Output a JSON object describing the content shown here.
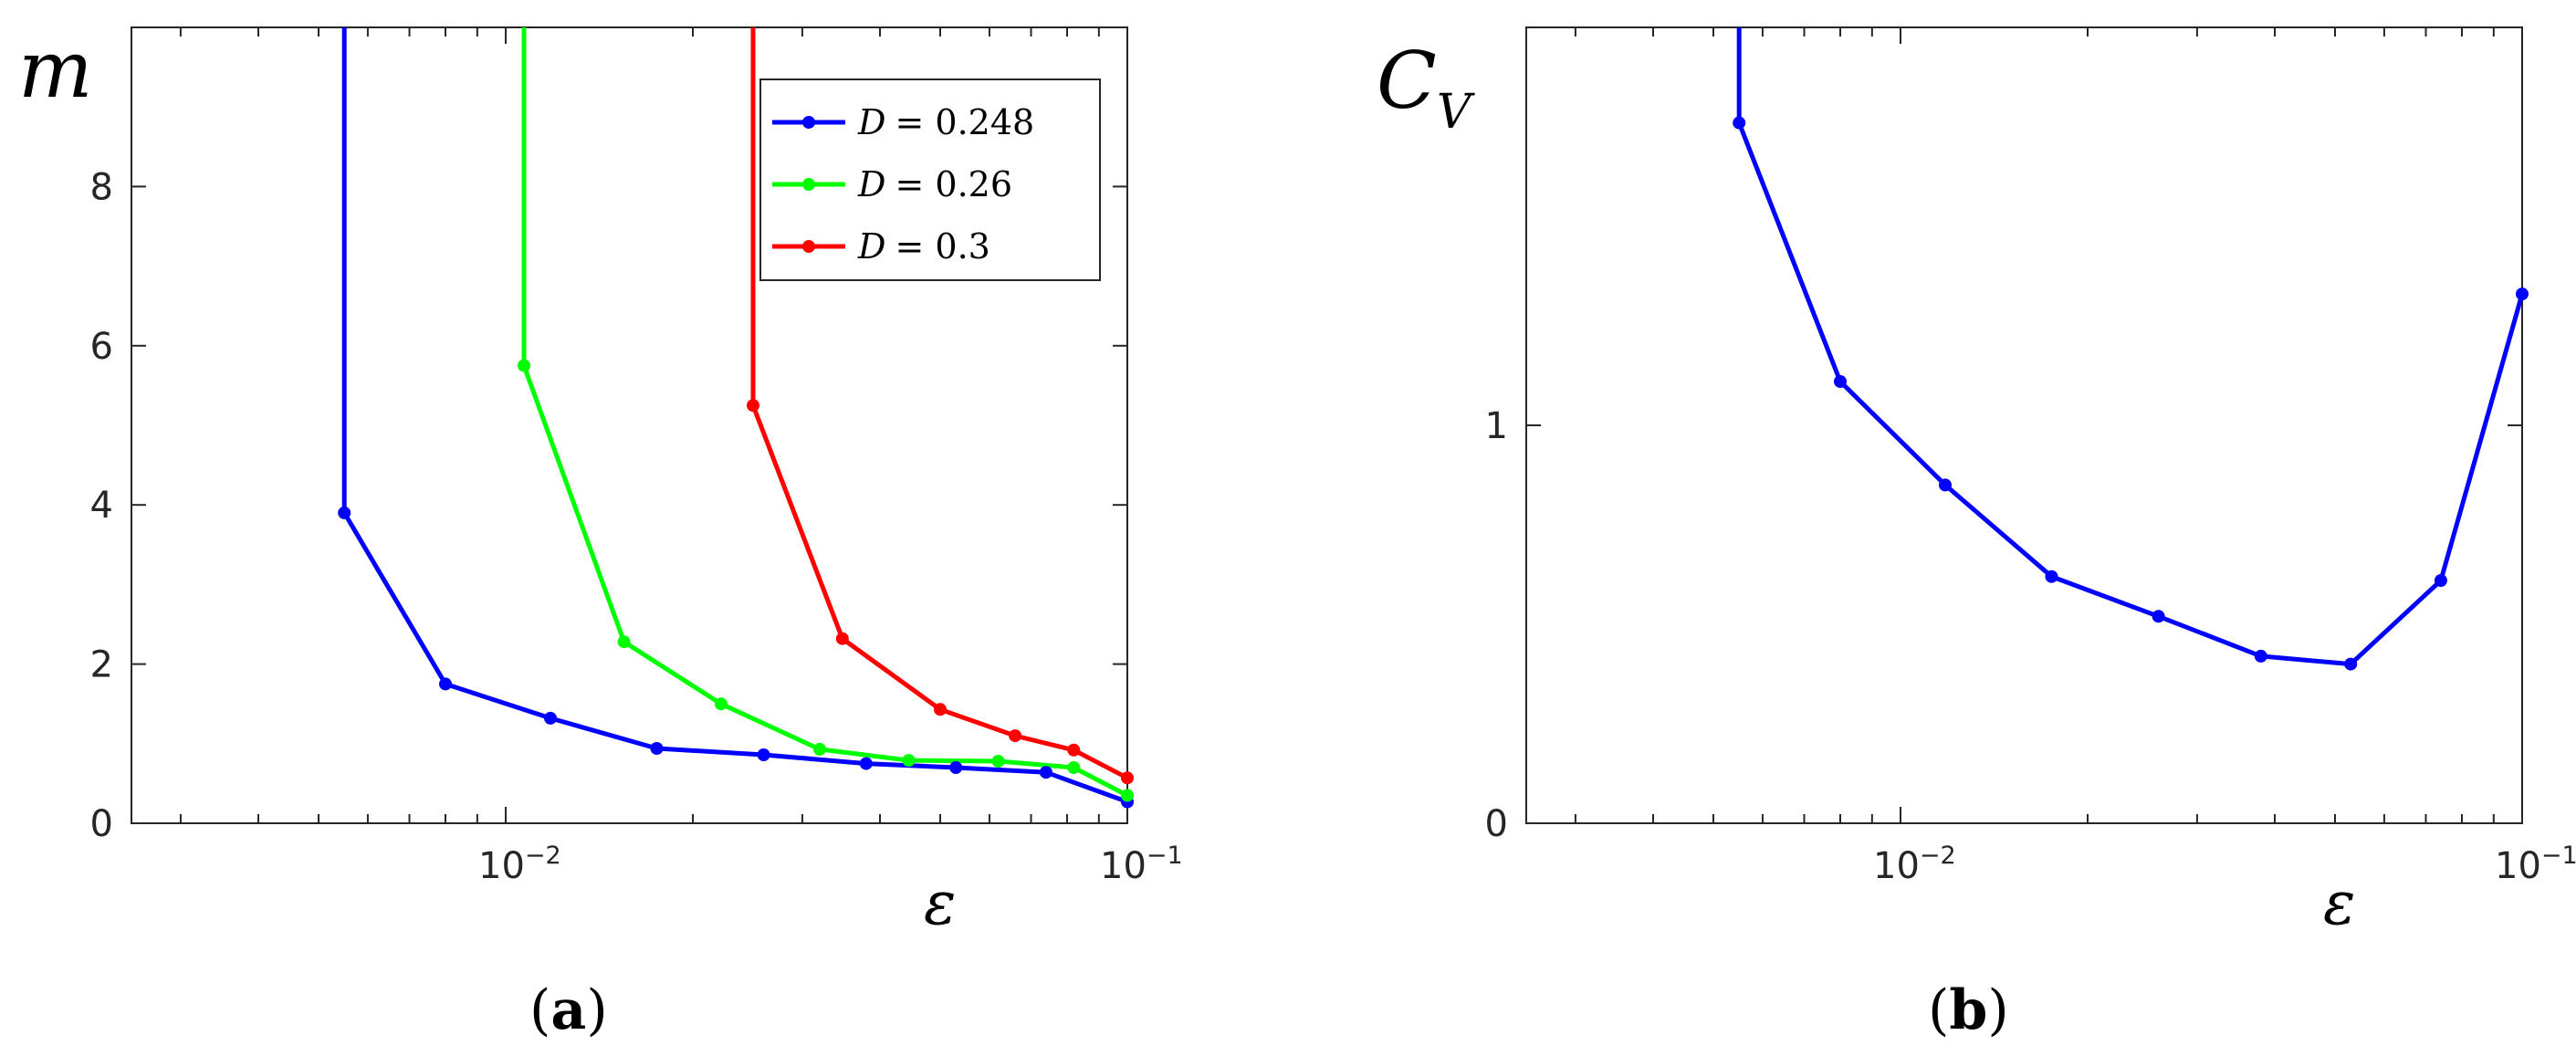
{
  "chart_data": [
    {
      "panel_label": "(a)",
      "panel_label_parts": {
        "open": "(",
        "letter": "a",
        "close": ")"
      },
      "type": "line",
      "ylabel": "m",
      "xlabel": "ε",
      "xscale": "log",
      "xlim": [
        0.0025,
        0.1
      ],
      "ylim": [
        0,
        10
      ],
      "grid": false,
      "legend_position": "top-right",
      "y_ticks": [
        {
          "value": 0,
          "label": "0"
        },
        {
          "value": 2,
          "label": "2"
        },
        {
          "value": 4,
          "label": "4"
        },
        {
          "value": 6,
          "label": "6"
        },
        {
          "value": 8,
          "label": "8"
        }
      ],
      "x_tick_labels": [
        {
          "value": 0.01,
          "base": "10",
          "exp": "−2"
        },
        {
          "value": 0.1,
          "base": "10",
          "exp": "−1"
        }
      ],
      "series": [
        {
          "name": "D = 0.248",
          "legend_var": "D",
          "legend_value": "= 0.248",
          "color": "#0000ff",
          "x": [
            0.0055,
            0.0055,
            0.008,
            0.0118,
            0.0175,
            0.026,
            0.038,
            0.053,
            0.074,
            0.1
          ],
          "y": [
            10,
            3.9,
            1.75,
            1.32,
            0.94,
            0.86,
            0.75,
            0.7,
            0.64,
            0.27
          ]
        },
        {
          "name": "D = 0.26",
          "legend_var": "D",
          "legend_value": "= 0.26",
          "color": "#00ff00",
          "x": [
            0.0107,
            0.0107,
            0.0155,
            0.0222,
            0.032,
            0.0445,
            0.062,
            0.082,
            0.1
          ],
          "y": [
            10,
            5.75,
            2.28,
            1.5,
            0.93,
            0.79,
            0.78,
            0.7,
            0.35
          ]
        },
        {
          "name": "D = 0.3",
          "legend_var": "D",
          "legend_value": "= 0.3",
          "color": "#ff0000",
          "x": [
            0.025,
            0.025,
            0.0348,
            0.05,
            0.066,
            0.082,
            0.1
          ],
          "y": [
            10,
            5.25,
            2.32,
            1.43,
            1.1,
            0.92,
            0.57
          ]
        }
      ]
    },
    {
      "panel_label": "(b)",
      "panel_label_parts": {
        "open": "(",
        "letter": "b",
        "close": ")"
      },
      "type": "line",
      "ylabel": "C_V",
      "ylabel_main": "C",
      "ylabel_sub": "V",
      "xlabel": "ε",
      "xscale": "log",
      "xlim": [
        0.0025,
        0.1
      ],
      "ylim": [
        0,
        2
      ],
      "grid": false,
      "y_ticks": [
        {
          "value": 0,
          "label": "0"
        },
        {
          "value": 1,
          "label": "1"
        }
      ],
      "x_tick_labels": [
        {
          "value": 0.01,
          "base": "10",
          "exp": "−2"
        },
        {
          "value": 0.1,
          "base": "10",
          "exp": "−1"
        }
      ],
      "series": [
        {
          "name": "D = 0.248",
          "color": "#0000ff",
          "x": [
            0.0055,
            0.0055,
            0.008,
            0.0118,
            0.0175,
            0.026,
            0.038,
            0.053,
            0.074,
            0.1
          ],
          "y": [
            2.0,
            1.76,
            1.11,
            0.85,
            0.62,
            0.52,
            0.42,
            0.4,
            0.61,
            1.33
          ]
        }
      ]
    }
  ]
}
